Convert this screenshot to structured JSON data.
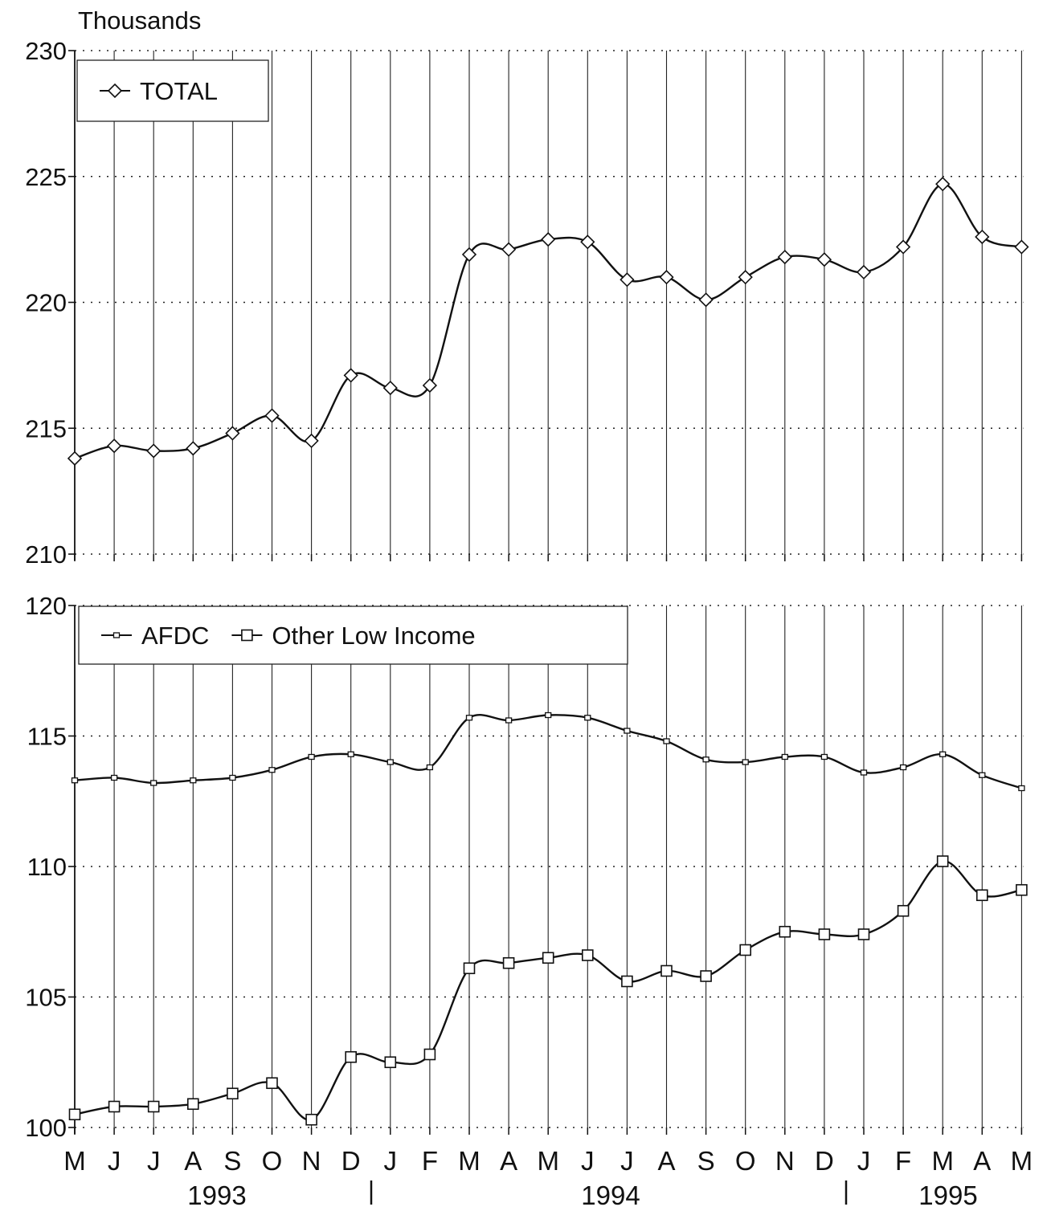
{
  "chart_data": [
    {
      "type": "line",
      "unit_label": "Thousands",
      "x": [
        "M",
        "J",
        "J",
        "A",
        "S",
        "O",
        "N",
        "D",
        "J",
        "F",
        "M",
        "A",
        "M",
        "J",
        "J",
        "A",
        "S",
        "O",
        "N",
        "D",
        "J",
        "F",
        "M",
        "A",
        "M"
      ],
      "ylim": [
        210,
        230
      ],
      "yticks": [
        210,
        215,
        220,
        225,
        230
      ],
      "grid": true,
      "legend_position": "top-left",
      "series": [
        {
          "name": "TOTAL",
          "marker": "diamond",
          "values": [
            213.8,
            214.3,
            214.1,
            214.2,
            214.8,
            215.5,
            214.5,
            217.1,
            216.6,
            216.7,
            221.9,
            222.1,
            222.5,
            222.4,
            220.9,
            221.0,
            220.1,
            221.0,
            221.8,
            221.7,
            221.2,
            222.2,
            224.7,
            222.6,
            222.2
          ]
        }
      ]
    },
    {
      "type": "line",
      "x": [
        "M",
        "J",
        "J",
        "A",
        "S",
        "O",
        "N",
        "D",
        "J",
        "F",
        "M",
        "A",
        "M",
        "J",
        "J",
        "A",
        "S",
        "O",
        "N",
        "D",
        "J",
        "F",
        "M",
        "A",
        "M"
      ],
      "ylim": [
        100,
        120
      ],
      "yticks": [
        100,
        105,
        110,
        115,
        120
      ],
      "grid": true,
      "legend_position": "top-left",
      "series": [
        {
          "name": "AFDC",
          "marker": "small-square",
          "values": [
            113.3,
            113.4,
            113.2,
            113.3,
            113.4,
            113.7,
            114.2,
            114.3,
            114.0,
            113.8,
            115.7,
            115.6,
            115.8,
            115.7,
            115.2,
            114.8,
            114.1,
            114.0,
            114.2,
            114.2,
            113.6,
            113.8,
            114.3,
            113.5,
            113.0
          ]
        },
        {
          "name": "Other Low Income",
          "marker": "square",
          "values": [
            100.5,
            100.8,
            100.8,
            100.9,
            101.3,
            101.7,
            100.3,
            102.7,
            102.5,
            102.8,
            106.1,
            106.3,
            106.5,
            106.6,
            105.6,
            106.0,
            105.8,
            106.8,
            107.5,
            107.4,
            107.4,
            108.3,
            110.2,
            108.9,
            109.1
          ]
        }
      ]
    }
  ],
  "year_labels": [
    "1993",
    "1994",
    "1995"
  ]
}
